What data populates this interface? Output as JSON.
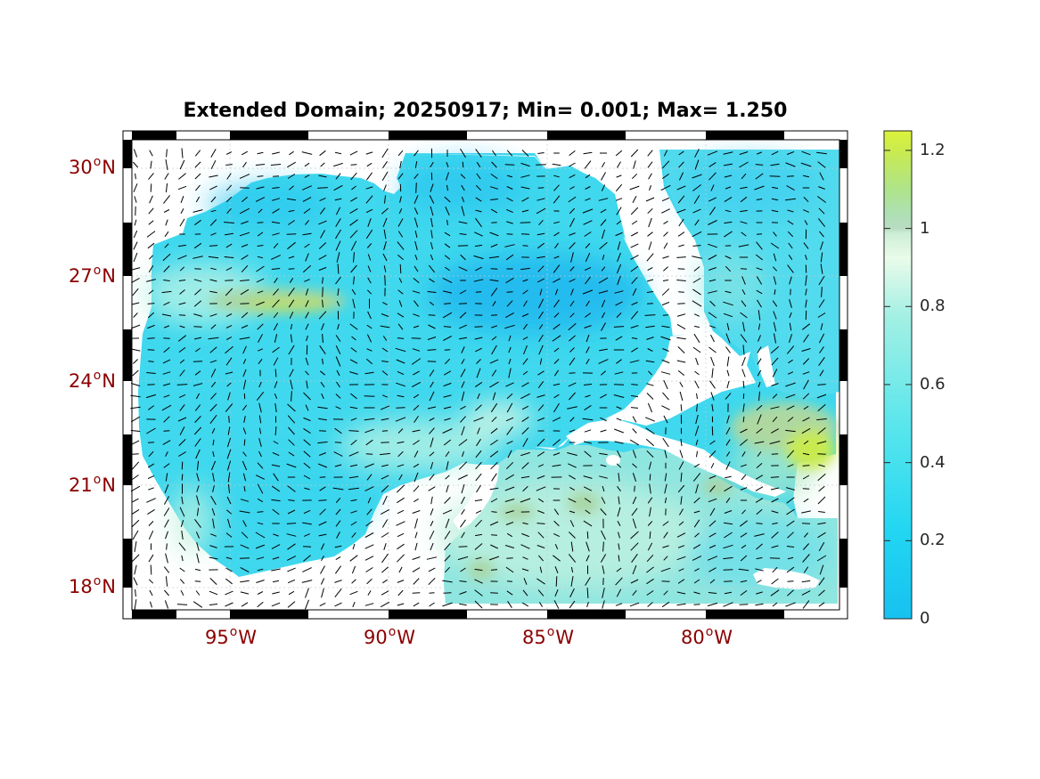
{
  "title": "Extended Domain; 20250917; Min= 0.001; Max= 1.250",
  "colors": {
    "land": "#ffffff",
    "label": "#8b0000",
    "colormap": [
      "#17c1f0",
      "#22d6f2",
      "#5ae6ec",
      "#9ff0e6",
      "#d6f8ea",
      "#f2fde8",
      "#b8dcc0",
      "#bfe46a",
      "#d8f03a"
    ]
  },
  "map": {
    "lat_labels": [
      {
        "value": "30",
        "hemi": "N"
      },
      {
        "value": "27",
        "hemi": "N"
      },
      {
        "value": "24",
        "hemi": "N"
      },
      {
        "value": "21",
        "hemi": "N"
      },
      {
        "value": "18",
        "hemi": "N"
      }
    ],
    "lon_labels": [
      {
        "value": "95",
        "hemi": "W"
      },
      {
        "value": "90",
        "hemi": "W"
      },
      {
        "value": "85",
        "hemi": "W"
      },
      {
        "value": "80",
        "hemi": "W"
      }
    ]
  },
  "colorbar": {
    "min": 0,
    "max": 1.25,
    "ticks": [
      "0",
      "0.2",
      "0.4",
      "0.6",
      "0.8",
      "1",
      "1.2"
    ],
    "tick_values": [
      0,
      0.2,
      0.4,
      0.6,
      0.8,
      1.0,
      1.2
    ]
  },
  "chart_data": {
    "type": "heatmap",
    "title": "Extended Domain; 20250917; Min= 0.001; Max= 1.250",
    "xlabel": "",
    "ylabel": "",
    "x_ticks": [
      "95°W",
      "90°W",
      "85°W",
      "80°W"
    ],
    "y_ticks": [
      "30°N",
      "27°N",
      "24°N",
      "21°N",
      "18°N"
    ],
    "value_min": 0.001,
    "value_max": 1.25,
    "colorbar_range": [
      0,
      1.25
    ]
  }
}
